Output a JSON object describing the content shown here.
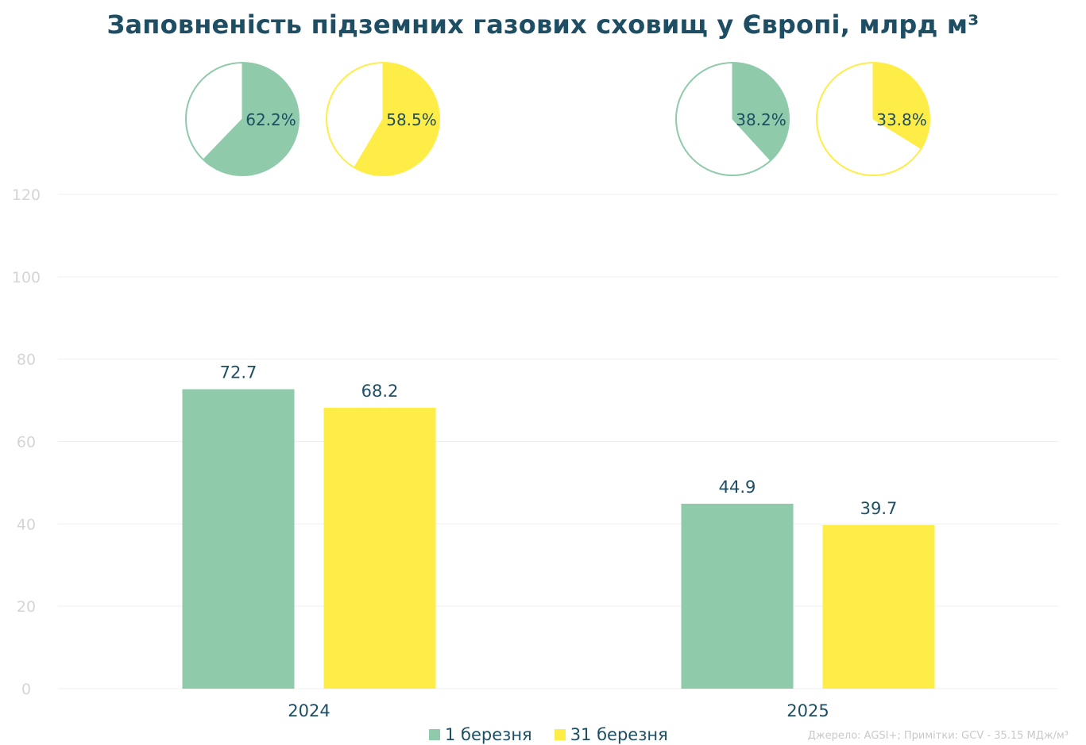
{
  "chart_data": {
    "type": "bar",
    "title": "Заповненість підземних газових сховищ у Європі, млрд м³",
    "categories": [
      "2024",
      "2025"
    ],
    "series": [
      {
        "name": "1 березня",
        "color": "#8fcaab",
        "values": [
          72.7,
          44.9
        ],
        "labels": [
          "72.7",
          "44.9"
        ],
        "pie_percent": [
          62.2,
          38.2
        ],
        "pie_labels": [
          "62.2%",
          "38.2%"
        ]
      },
      {
        "name": "31 березня",
        "color": "#ffed47",
        "values": [
          68.2,
          39.7
        ],
        "labels": [
          "68.2",
          "39.7"
        ],
        "pie_percent": [
          58.5,
          33.8
        ],
        "pie_labels": [
          "58.5%",
          "33.8%"
        ]
      }
    ],
    "ylim": [
      0,
      120
    ],
    "yticks": [
      "0",
      "20",
      "40",
      "60",
      "80",
      "100",
      "120"
    ],
    "grid": true,
    "legend_position": "bottom-center"
  },
  "source_note": "Джерело: AGSI+; Примітки: GCV - 35.15 МДж/м³",
  "colors": {
    "title": "#1d4e63",
    "axis_text": "#d5d5d5",
    "grid": "#efefef",
    "label": "#1d4e63"
  }
}
